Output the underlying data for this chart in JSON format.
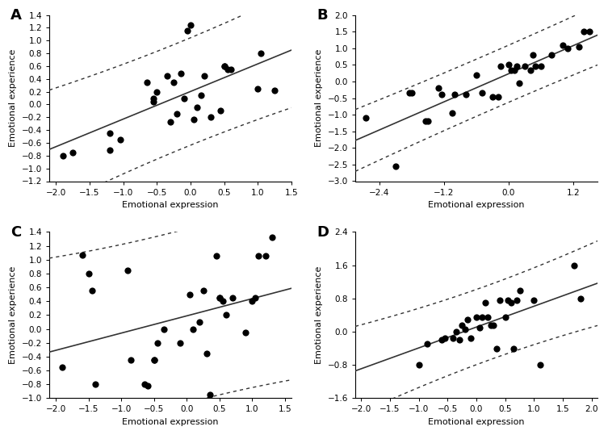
{
  "panel_A": {
    "label": "A",
    "x": [
      -1.9,
      -1.75,
      -1.2,
      -1.2,
      -1.05,
      -0.65,
      -0.55,
      -0.55,
      -0.5,
      -0.35,
      -0.3,
      -0.25,
      -0.2,
      -0.15,
      -0.1,
      -0.05,
      0.0,
      0.05,
      0.1,
      0.15,
      0.2,
      0.3,
      0.45,
      0.5,
      0.5,
      0.55,
      0.6,
      1.0,
      1.05,
      1.25
    ],
    "y": [
      -0.8,
      -0.75,
      -0.45,
      -0.72,
      -0.55,
      0.35,
      0.05,
      0.1,
      0.2,
      0.45,
      -0.27,
      0.35,
      -0.15,
      0.48,
      0.1,
      1.15,
      1.25,
      -0.23,
      -0.05,
      0.15,
      0.45,
      -0.2,
      -0.1,
      0.6,
      0.6,
      0.55,
      0.55,
      0.25,
      0.8,
      0.22
    ],
    "xlim": [
      -2.1,
      1.5
    ],
    "ylim": [
      -1.2,
      1.4
    ],
    "xticks": [
      -2.0,
      -1.5,
      -1.0,
      -0.5,
      0.0,
      0.5,
      1.0,
      1.5
    ],
    "yticks": [
      -1.2,
      -1.0,
      -0.8,
      -0.6,
      -0.4,
      -0.2,
      0.0,
      0.2,
      0.4,
      0.6,
      0.8,
      1.0,
      1.2,
      1.4
    ],
    "xlabel": "Emotional expression",
    "ylabel": "Emotional experience",
    "line_x0": -2.0,
    "line_y0": -0.38,
    "line_x1": 1.5,
    "line_y1": 0.65
  },
  "panel_B": {
    "label": "B",
    "x": [
      -2.65,
      -2.1,
      -1.85,
      -1.8,
      -1.55,
      -1.5,
      -1.3,
      -1.25,
      -1.05,
      -1.0,
      -0.8,
      -0.6,
      -0.5,
      -0.3,
      -0.2,
      -0.15,
      0.0,
      0.05,
      0.1,
      0.15,
      0.2,
      0.3,
      0.4,
      0.45,
      0.5,
      0.6,
      0.8,
      1.0,
      1.1,
      1.3,
      1.4,
      1.5
    ],
    "y": [
      -1.1,
      -2.55,
      -0.35,
      -0.35,
      -1.2,
      -1.2,
      -0.2,
      -0.4,
      -0.95,
      -0.4,
      -0.4,
      0.2,
      -0.35,
      -0.45,
      -0.45,
      0.45,
      0.5,
      0.35,
      0.35,
      0.45,
      -0.05,
      0.45,
      0.35,
      0.8,
      0.45,
      0.45,
      0.8,
      1.1,
      1.0,
      1.05,
      1.5,
      1.5
    ],
    "xlim": [
      -2.85,
      1.65
    ],
    "ylim": [
      -3.0,
      2.0
    ],
    "xticks": [
      -2.4,
      -1.2,
      0.0,
      1.2
    ],
    "yticks": [
      -3.0,
      -2.5,
      -2.0,
      -1.5,
      -1.0,
      -0.5,
      0.0,
      0.5,
      1.0,
      1.5,
      2.0
    ],
    "xlabel": "Emotional expression",
    "ylabel": "Emotional experience",
    "line_x0": -2.85,
    "line_y0": -1.7,
    "line_x1": 1.65,
    "line_y1": 1.45
  },
  "panel_C": {
    "label": "C",
    "x": [
      -1.9,
      -1.6,
      -1.5,
      -1.45,
      -1.4,
      -0.9,
      -0.85,
      -0.65,
      -0.6,
      -0.5,
      -0.5,
      -0.45,
      -0.35,
      -0.1,
      0.05,
      0.1,
      0.2,
      0.25,
      0.3,
      0.35,
      0.45,
      0.5,
      0.5,
      0.55,
      0.6,
      0.7,
      0.9,
      1.0,
      1.05,
      1.1,
      1.2,
      1.3
    ],
    "y": [
      -0.55,
      1.07,
      0.8,
      0.55,
      -0.8,
      0.85,
      -0.45,
      -0.8,
      -0.82,
      -0.45,
      -0.45,
      -0.2,
      0.0,
      -0.2,
      0.5,
      0.0,
      0.1,
      0.55,
      -0.35,
      -0.95,
      1.05,
      0.45,
      0.45,
      0.4,
      0.2,
      0.45,
      -0.05,
      0.4,
      0.45,
      1.05,
      1.05,
      1.32
    ],
    "xlim": [
      -2.1,
      1.6
    ],
    "ylim": [
      -1.0,
      1.4
    ],
    "xticks": [
      -2.0,
      -1.5,
      -1.0,
      -0.5,
      0.0,
      0.5,
      1.0,
      1.5
    ],
    "yticks": [
      -1.0,
      -0.8,
      -0.6,
      -0.4,
      -0.2,
      0.0,
      0.2,
      0.4,
      0.6,
      0.8,
      1.0,
      1.2,
      1.4
    ],
    "xlabel": "Emotional expression",
    "ylabel": "Emotional experience",
    "line_x0": -2.0,
    "line_y0": -0.4,
    "line_x1": 1.5,
    "line_y1": 0.7
  },
  "panel_D": {
    "label": "D",
    "x": [
      -1.0,
      -0.85,
      -0.6,
      -0.55,
      -0.4,
      -0.35,
      -0.3,
      -0.25,
      -0.2,
      -0.15,
      -0.1,
      0.0,
      0.05,
      0.1,
      0.15,
      0.2,
      0.25,
      0.3,
      0.35,
      0.4,
      0.5,
      0.55,
      0.6,
      0.65,
      0.7,
      0.75,
      1.0,
      1.1,
      1.7,
      1.8
    ],
    "y": [
      -0.8,
      -0.3,
      -0.2,
      -0.15,
      -0.15,
      0.0,
      -0.2,
      0.15,
      0.05,
      0.3,
      -0.15,
      0.35,
      0.1,
      0.35,
      0.7,
      0.35,
      0.15,
      0.15,
      -0.4,
      0.75,
      0.35,
      0.75,
      0.7,
      -0.4,
      0.75,
      1.0,
      0.75,
      -0.8,
      1.6,
      0.8
    ],
    "xlim": [
      -2.1,
      2.1
    ],
    "ylim": [
      -1.6,
      2.4
    ],
    "xticks": [
      -2.0,
      -1.5,
      -1.0,
      -0.5,
      0.0,
      0.5,
      1.0,
      1.5,
      2.0
    ],
    "yticks": [
      -1.6,
      -0.8,
      0.0,
      0.8,
      1.6,
      2.4
    ],
    "xlabel": "Emotional expression",
    "ylabel": "Emotional experience",
    "line_x0": -2.0,
    "line_y0": -1.15,
    "line_x1": 2.0,
    "line_y1": 0.95
  },
  "dot_color": "#000000",
  "dot_size": 35,
  "line_color": "#333333",
  "ci_color": "#333333",
  "background_color": "#ffffff"
}
